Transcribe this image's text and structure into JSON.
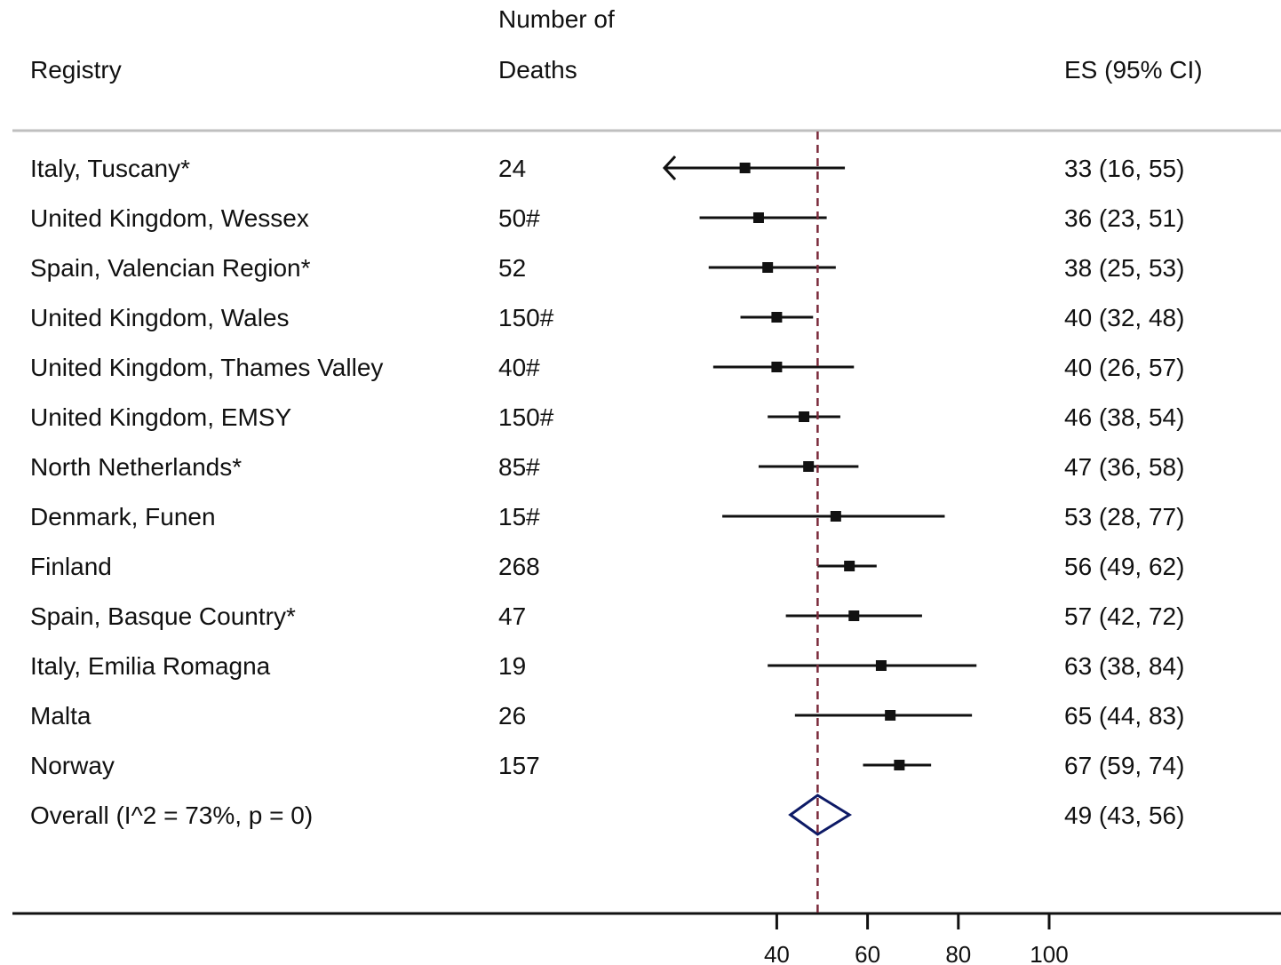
{
  "chart_data": {
    "type": "forest",
    "headers": {
      "registry": "Registry",
      "deaths_line1": "Number of",
      "deaths_line2": "Deaths",
      "es": "ES (95% CI)"
    },
    "rows": [
      {
        "registry": "Italy, Tuscany*",
        "deaths": "24",
        "es": 33,
        "lo": 16,
        "hi": 55,
        "label": "33 (16, 55)",
        "clipped_left": true
      },
      {
        "registry": "United Kingdom, Wessex",
        "deaths": "50#",
        "es": 36,
        "lo": 23,
        "hi": 51,
        "label": "36 (23, 51)"
      },
      {
        "registry": "Spain, Valencian Region*",
        "deaths": "52",
        "es": 38,
        "lo": 25,
        "hi": 53,
        "label": "38 (25, 53)"
      },
      {
        "registry": "United Kingdom, Wales",
        "deaths": "150#",
        "es": 40,
        "lo": 32,
        "hi": 48,
        "label": "40 (32, 48)"
      },
      {
        "registry": "United Kingdom, Thames Valley",
        "deaths": "40#",
        "es": 40,
        "lo": 26,
        "hi": 57,
        "label": "40 (26, 57)"
      },
      {
        "registry": "United Kingdom, EMSY",
        "deaths": "150#",
        "es": 46,
        "lo": 38,
        "hi": 54,
        "label": "46 (38, 54)"
      },
      {
        "registry": "North Netherlands*",
        "deaths": "85#",
        "es": 47,
        "lo": 36,
        "hi": 58,
        "label": "47 (36, 58)"
      },
      {
        "registry": "Denmark, Funen",
        "deaths": "15#",
        "es": 53,
        "lo": 28,
        "hi": 77,
        "label": "53 (28, 77)"
      },
      {
        "registry": "Finland",
        "deaths": "268",
        "es": 56,
        "lo": 49,
        "hi": 62,
        "label": "56 (49, 62)"
      },
      {
        "registry": "Spain, Basque Country*",
        "deaths": "47",
        "es": 57,
        "lo": 42,
        "hi": 72,
        "label": "57 (42, 72)"
      },
      {
        "registry": "Italy, Emilia Romagna",
        "deaths": "19",
        "es": 63,
        "lo": 38,
        "hi": 84,
        "label": "63 (38, 84)"
      },
      {
        "registry": "Malta",
        "deaths": "26",
        "es": 65,
        "lo": 44,
        "hi": 83,
        "label": "65 (44, 83)"
      },
      {
        "registry": "Norway",
        "deaths": "157",
        "es": 67,
        "lo": 59,
        "hi": 74,
        "label": "67 (59, 74)"
      }
    ],
    "overall": {
      "registry": "Overall  (I^2 = 73%, p = 0)",
      "es": 49,
      "lo": 43,
      "hi": 56,
      "label": "49 (43, 56)"
    },
    "reference_line": 49,
    "xticks": [
      40,
      60,
      80,
      100
    ],
    "colors": {
      "marker": "#111111",
      "overall_diamond": "#0d1a66",
      "reference_line": "#7a2a3a",
      "separator": "#bfbfbf"
    }
  }
}
